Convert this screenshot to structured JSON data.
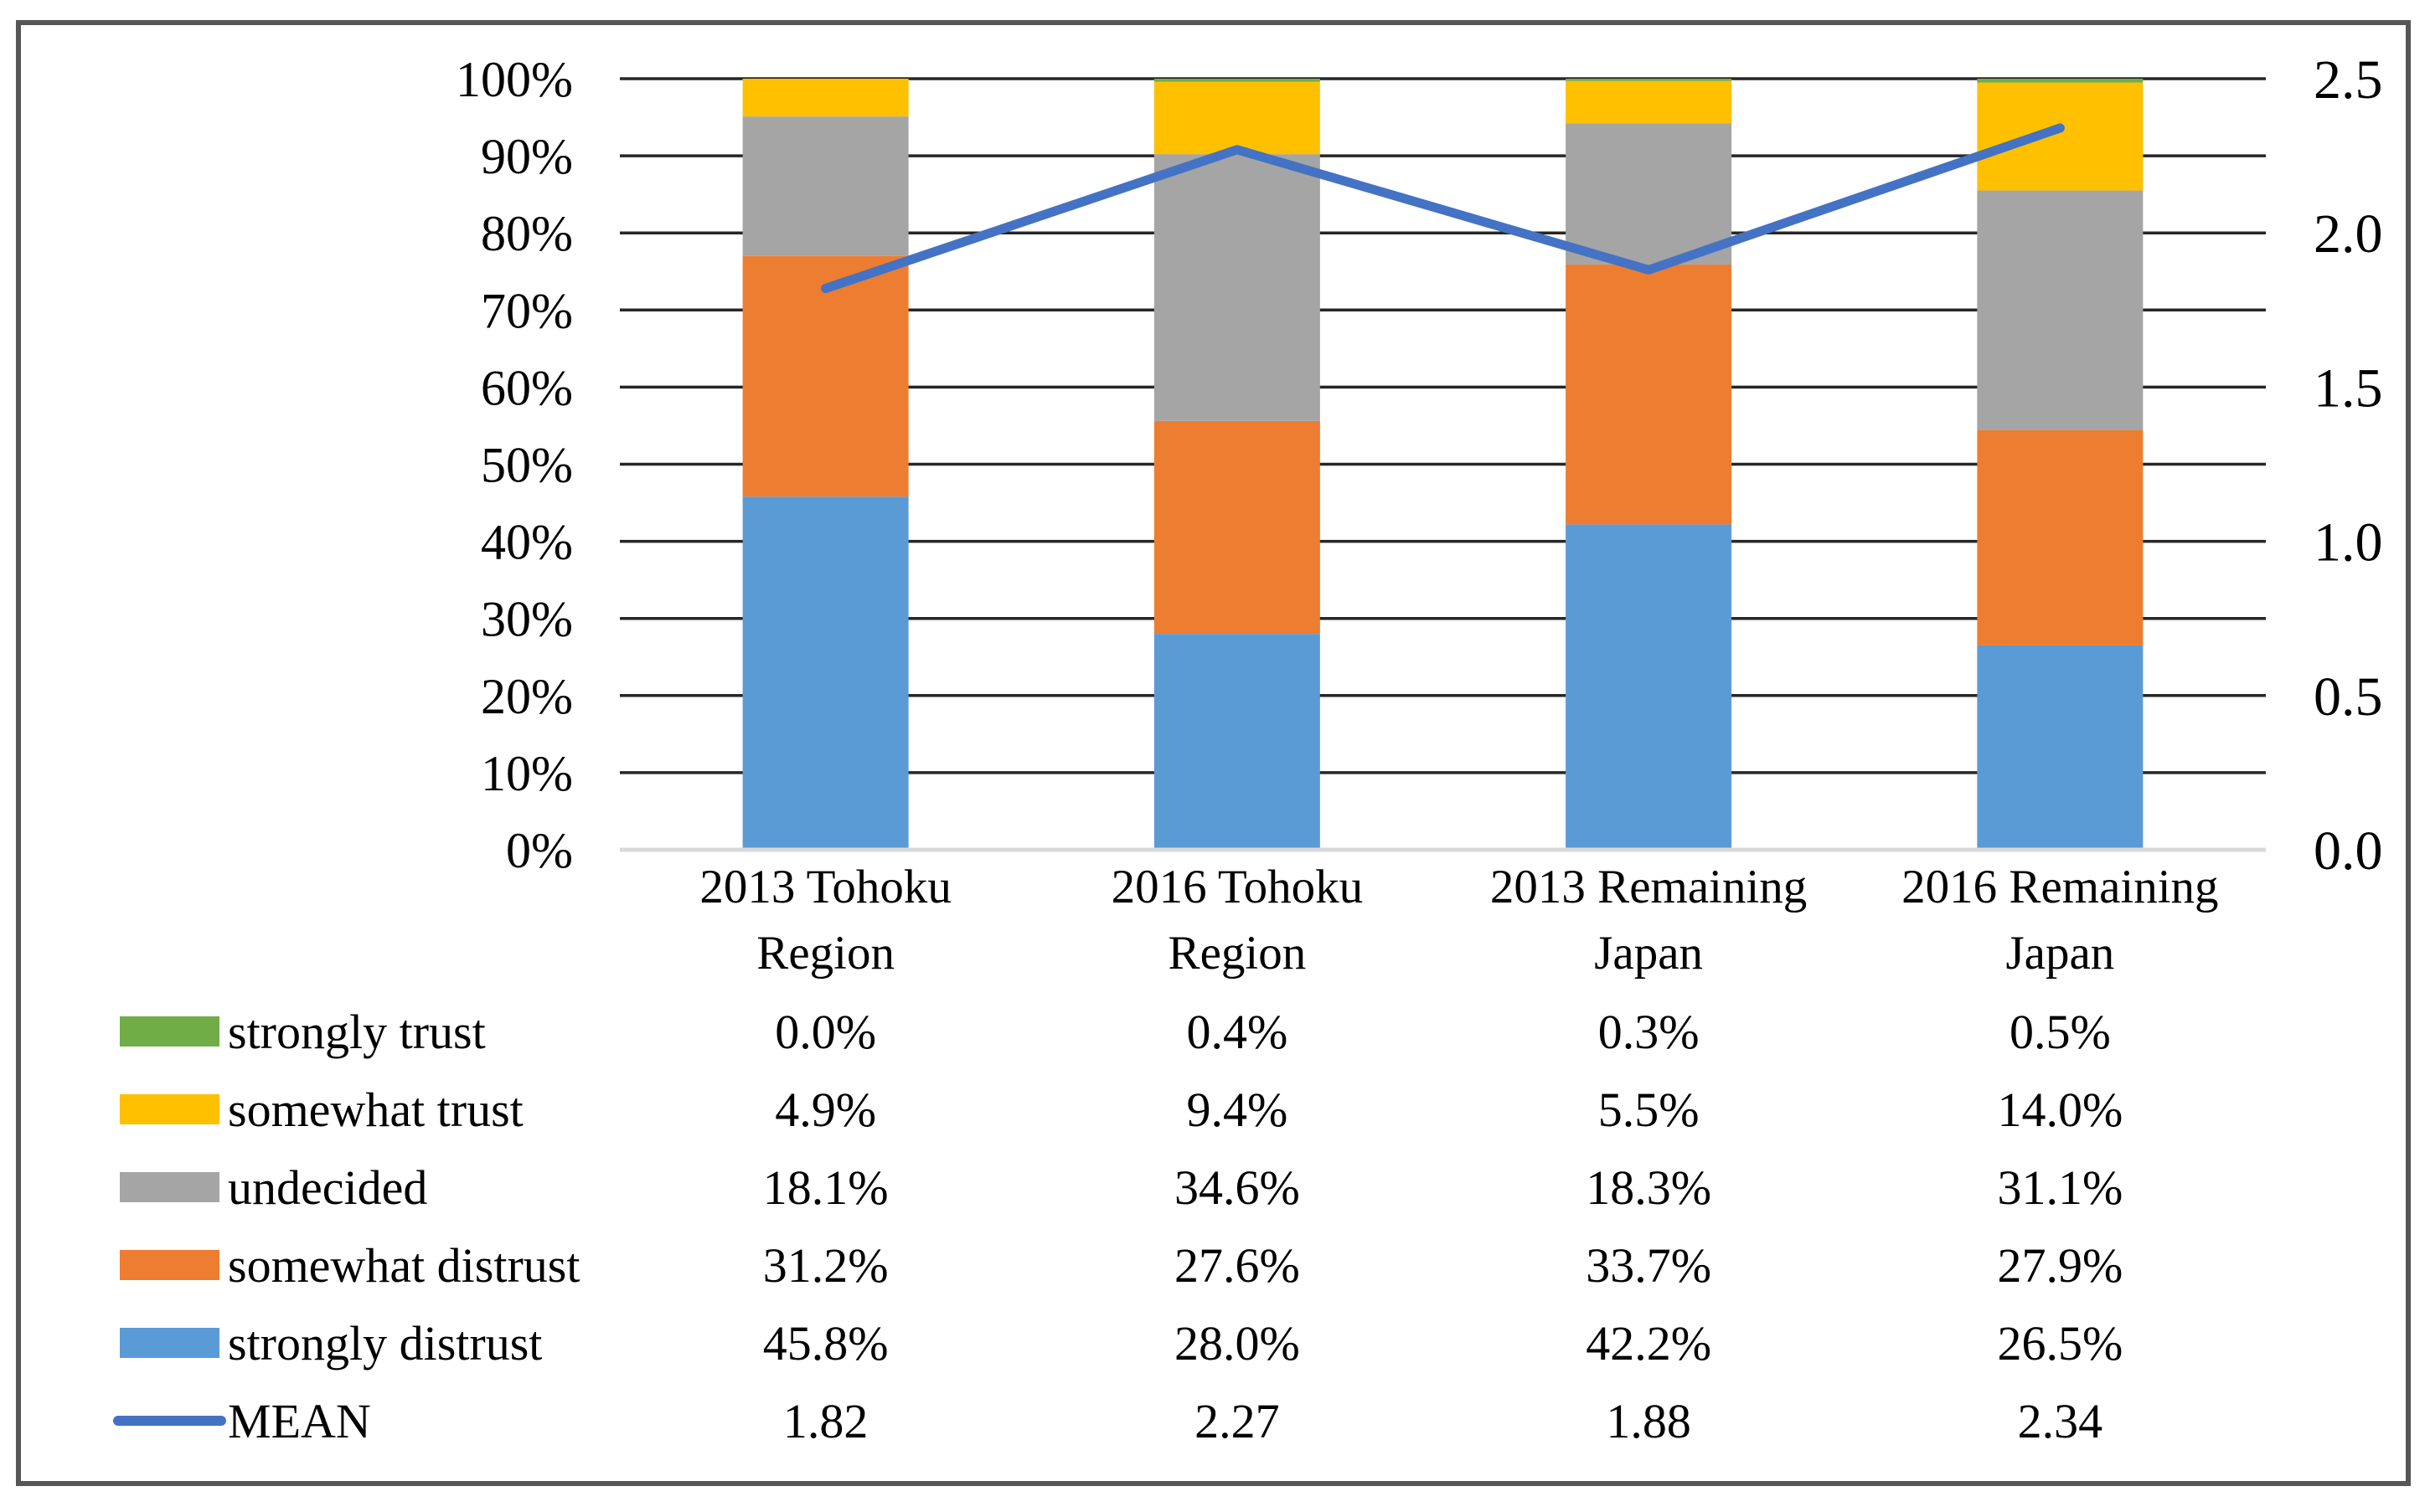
{
  "chart_data": {
    "type": "bar+line",
    "subtype": "stacked-percent-bars-with-mean-line",
    "categories": [
      "2013 Tohoku Region",
      "2016 Tohoku Region",
      "2013 Remaining Japan",
      "2016 Remaining Japan"
    ],
    "category_label_lines": [
      [
        "2013 Tohoku",
        "Region"
      ],
      [
        "2016 Tohoku",
        "Region"
      ],
      [
        "2013 Remaining",
        "Japan"
      ],
      [
        "2016 Remaining",
        "Japan"
      ]
    ],
    "bar_series_bottom_to_top": [
      {
        "name": "strongly distrust",
        "color": "#5B9BD5",
        "values": [
          45.8,
          28.0,
          42.2,
          26.5
        ]
      },
      {
        "name": "somewhat distrust",
        "color": "#ED7D31",
        "values": [
          31.2,
          27.6,
          33.7,
          27.9
        ]
      },
      {
        "name": "undecided",
        "color": "#A5A5A5",
        "values": [
          18.1,
          34.6,
          18.3,
          31.1
        ]
      },
      {
        "name": "somewhat trust",
        "color": "#FFC000",
        "values": [
          4.9,
          9.4,
          5.5,
          14.0
        ]
      },
      {
        "name": "strongly trust",
        "color": "#70AD47",
        "values": [
          0.0,
          0.4,
          0.3,
          0.5
        ]
      }
    ],
    "line_series": {
      "name": "MEAN",
      "color": "#4472C4",
      "values": [
        1.82,
        2.27,
        1.88,
        2.34
      ]
    },
    "left_axis": {
      "min": 0,
      "max": 100,
      "step": 10,
      "tick_labels": [
        "0%",
        "10%",
        "20%",
        "30%",
        "40%",
        "50%",
        "60%",
        "70%",
        "80%",
        "90%",
        "100%"
      ]
    },
    "right_axis": {
      "min": 0.0,
      "max": 2.5,
      "step": 0.5,
      "tick_labels": [
        "0.0",
        "0.5",
        "1.0",
        "1.5",
        "2.0",
        "2.5"
      ]
    },
    "grid": true,
    "legend_position": "bottom-table",
    "legend_table_rows": [
      {
        "label": "strongly trust",
        "swatch_color": "#70AD47",
        "swatch_type": "box",
        "values": [
          "0.0%",
          "0.4%",
          "0.3%",
          "0.5%"
        ]
      },
      {
        "label": "somewhat trust",
        "swatch_color": "#FFC000",
        "swatch_type": "box",
        "values": [
          "4.9%",
          "9.4%",
          "5.5%",
          "14.0%"
        ]
      },
      {
        "label": "undecided",
        "swatch_color": "#A5A5A5",
        "swatch_type": "box",
        "values": [
          "18.1%",
          "34.6%",
          "18.3%",
          "31.1%"
        ]
      },
      {
        "label": "somewhat distrust",
        "swatch_color": "#ED7D31",
        "swatch_type": "box",
        "values": [
          "31.2%",
          "27.6%",
          "33.7%",
          "27.9%"
        ]
      },
      {
        "label": "strongly distrust",
        "swatch_color": "#5B9BD5",
        "swatch_type": "box",
        "values": [
          "45.8%",
          "28.0%",
          "42.2%",
          "26.5%"
        ]
      },
      {
        "label": "MEAN",
        "swatch_color": "#4472C4",
        "swatch_type": "line",
        "values": [
          "1.82",
          "2.27",
          "1.88",
          "2.34"
        ]
      }
    ],
    "colors": {
      "gridline": "#262626",
      "zero_axis_line": "#D9D9D9",
      "frame_border": "#565656",
      "text": "#000000",
      "background": "#FFFFFF"
    }
  }
}
